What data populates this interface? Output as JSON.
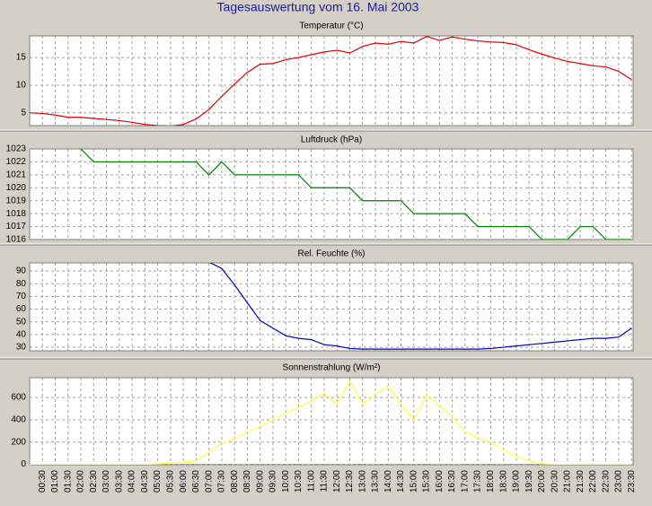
{
  "title": "Tagesauswertung vom 16. Mai 2003",
  "chart_data": [
    {
      "type": "line",
      "title": "Temperatur (°C)",
      "categories": [
        null,
        "00:30",
        "01:00",
        "01:30",
        "02:00",
        "02:30",
        "03:00",
        "03:30",
        "04:00",
        "04:30",
        "05:00",
        "05:30",
        "06:00",
        "06:30",
        "07:00",
        "07:30",
        "08:00",
        "08:30",
        "09:00",
        "09:30",
        "10:00",
        "10:30",
        "11:00",
        "11:30",
        "12:00",
        "12:30",
        "13:00",
        "13:30",
        "14:00",
        "14:30",
        "15:00",
        "15:30",
        "16:00",
        "16:30",
        "17:00",
        "17:30",
        "18:00",
        "18:30",
        "19:00",
        "19:30",
        "20:00",
        "20:30",
        "21:00",
        "21:30",
        "22:00",
        "22:30",
        "23:00",
        "23:30"
      ],
      "series": [
        {
          "name": "Temperatur",
          "color": "#e00000",
          "values": [
            5.0,
            4.9,
            4.6,
            4.2,
            4.2,
            4.0,
            3.8,
            3.6,
            3.3,
            2.9,
            2.7,
            2.6,
            2.9,
            3.9,
            5.6,
            8.0,
            10.2,
            12.3,
            13.8,
            13.9,
            14.6,
            15.0,
            15.5,
            16.0,
            16.3,
            15.8,
            17.0,
            17.6,
            17.4,
            17.9,
            17.6,
            18.8,
            18.1,
            18.7,
            18.3,
            18.0,
            17.8,
            17.7,
            17.3,
            16.4,
            15.6,
            14.9,
            14.3,
            13.9,
            13.5,
            13.3,
            12.5,
            11.0
          ]
        }
      ],
      "ylim": [
        2.7,
        18.9
      ],
      "yticks": [
        5,
        10,
        15
      ],
      "grid": true
    },
    {
      "type": "line",
      "title": "Luftdruck (hPa)",
      "categories": [
        null,
        "00:30",
        "01:00",
        "01:30",
        "02:00",
        "02:30",
        "03:00",
        "03:30",
        "04:00",
        "04:30",
        "05:00",
        "05:30",
        "06:00",
        "06:30",
        "07:00",
        "07:30",
        "08:00",
        "08:30",
        "09:00",
        "09:30",
        "10:00",
        "10:30",
        "11:00",
        "11:30",
        "12:00",
        "12:30",
        "13:00",
        "13:30",
        "14:00",
        "14:30",
        "15:00",
        "15:30",
        "16:00",
        "16:30",
        "17:00",
        "17:30",
        "18:00",
        "18:30",
        "19:00",
        "19:30",
        "20:00",
        "20:30",
        "21:00",
        "21:30",
        "22:00",
        "22:30",
        "23:00",
        "23:30"
      ],
      "series": [
        {
          "name": "Luftdruck",
          "color": "#008000",
          "values": [
            null,
            null,
            null,
            null,
            1023,
            1022,
            1022,
            1022,
            1022,
            1022,
            1022,
            1022,
            1022,
            1022,
            1021,
            1022,
            1021,
            1021,
            1021,
            1021,
            1021,
            1021,
            1020,
            1020,
            1020,
            1020,
            1019,
            1019,
            1019,
            1019,
            1018,
            1018,
            1018,
            1018,
            1018,
            1017,
            1017,
            1017,
            1017,
            1017,
            1016,
            1016,
            1016,
            1017,
            1017,
            1016,
            1016,
            1016
          ]
        }
      ],
      "ylim": [
        1016,
        1023
      ],
      "yticks": [
        1016,
        1017,
        1018,
        1019,
        1020,
        1021,
        1022,
        1023
      ],
      "grid": true
    },
    {
      "type": "line",
      "title": "Rel. Feuchte (%)",
      "categories": [
        null,
        "00:30",
        "01:00",
        "01:30",
        "02:00",
        "02:30",
        "03:00",
        "03:30",
        "04:00",
        "04:30",
        "05:00",
        "05:30",
        "06:00",
        "06:30",
        "07:00",
        "07:30",
        "08:00",
        "08:30",
        "09:00",
        "09:30",
        "10:00",
        "10:30",
        "11:00",
        "11:30",
        "12:00",
        "12:30",
        "13:00",
        "13:30",
        "14:00",
        "14:30",
        "15:00",
        "15:30",
        "16:00",
        "16:30",
        "17:00",
        "17:30",
        "18:00",
        "18:30",
        "19:00",
        "19:30",
        "20:00",
        "20:30",
        "21:00",
        "21:30",
        "22:00",
        "22:30",
        "23:00",
        "23:30"
      ],
      "series": [
        {
          "name": "Rel. Feuchte",
          "color": "#0000c0",
          "values": [
            null,
            null,
            null,
            null,
            null,
            null,
            null,
            null,
            null,
            null,
            null,
            null,
            null,
            null,
            97,
            92,
            79,
            65,
            51,
            45,
            39,
            37,
            36,
            32,
            31,
            29,
            28.5,
            28.5,
            28.5,
            28.5,
            28.5,
            28.5,
            28.5,
            28.5,
            28.5,
            28.5,
            29,
            30,
            31,
            32,
            33,
            34,
            35,
            36,
            37,
            37,
            38,
            45
          ]
        }
      ],
      "ylim": [
        27.2,
        96.4
      ],
      "yticks": [
        30,
        40,
        50,
        60,
        70,
        80,
        90
      ],
      "grid": true
    },
    {
      "type": "line",
      "title": "Sonnenstrahlung (W/m²)",
      "categories": [
        null,
        "00:30",
        "01:00",
        "01:30",
        "02:00",
        "02:30",
        "03:00",
        "03:30",
        "04:00",
        "04:30",
        "05:00",
        "05:30",
        "06:00",
        "06:30",
        "07:00",
        "07:30",
        "08:00",
        "08:30",
        "09:00",
        "09:30",
        "10:00",
        "10:30",
        "11:00",
        "11:30",
        "12:00",
        "12:30",
        "13:00",
        "13:30",
        "14:00",
        "14:30",
        "15:00",
        "15:30",
        "16:00",
        "16:30",
        "17:00",
        "17:30",
        "18:00",
        "18:30",
        "19:00",
        "19:30",
        "20:00",
        "20:30",
        "21:00",
        "21:30",
        "22:00",
        "22:30",
        "23:00",
        "23:30"
      ],
      "series": [
        {
          "name": "Sonnenstrahlung",
          "color": "#ffff40",
          "values": [
            0,
            0,
            0,
            0,
            0,
            0,
            0,
            0,
            0,
            0,
            3,
            10,
            20,
            30,
            110,
            190,
            230,
            290,
            340,
            400,
            460,
            510,
            570,
            640,
            540,
            750,
            540,
            630,
            700,
            540,
            400,
            620,
            530,
            430,
            290,
            240,
            200,
            130,
            70,
            30,
            5,
            0,
            0,
            0,
            0,
            0,
            0,
            0
          ]
        }
      ],
      "ylim": [
        -4,
        778
      ],
      "yticks": [
        0,
        200,
        400,
        600
      ],
      "grid": true
    }
  ]
}
